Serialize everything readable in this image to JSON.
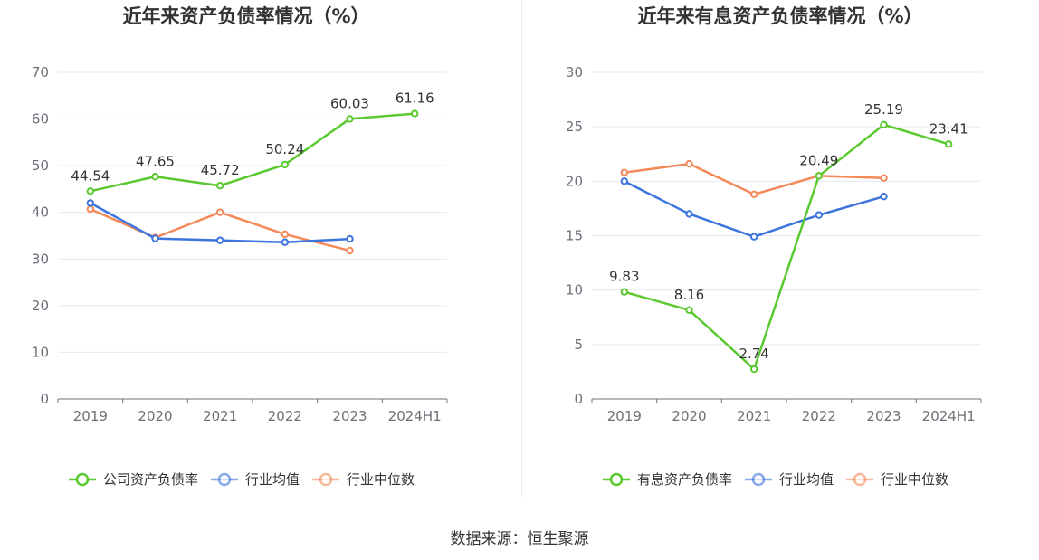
{
  "colors": {
    "company": "#5ac92f",
    "industry_avg": "#3d74dd",
    "industry_median": "#f4895a",
    "grid": "#e6e9f2",
    "axis": "#6e7079"
  },
  "source": "数据来源：恒生聚源",
  "chart_data": [
    {
      "type": "line",
      "title": "近年来资产负债率情况（%）",
      "categories": [
        "2019",
        "2020",
        "2021",
        "2022",
        "2023",
        "2024H1"
      ],
      "ylim": [
        0,
        70
      ],
      "yticks": [
        "0",
        "10",
        "20",
        "30",
        "40",
        "50",
        "60",
        "70"
      ],
      "grid": true,
      "legend_position": "bottom",
      "series": [
        {
          "name": "公司资产负债率",
          "role": "company",
          "values": [
            44.54,
            47.65,
            45.72,
            50.24,
            60.03,
            61.16
          ],
          "labels": [
            "44.54",
            "47.65",
            "45.72",
            "50.24",
            "60.03",
            "61.16"
          ]
        },
        {
          "name": "行业均值",
          "role": "industry_avg",
          "values": [
            42.0,
            34.4,
            34.0,
            33.6,
            34.3,
            null
          ]
        },
        {
          "name": "行业中位数",
          "role": "industry_median",
          "values": [
            40.7,
            34.6,
            40.0,
            35.3,
            31.8,
            null
          ]
        }
      ]
    },
    {
      "type": "line",
      "title": "近年来有息资产负债率情况（%）",
      "categories": [
        "2019",
        "2020",
        "2021",
        "2022",
        "2023",
        "2024H1"
      ],
      "ylim": [
        0,
        30
      ],
      "yticks": [
        "0",
        "5",
        "10",
        "15",
        "20",
        "25",
        "30"
      ],
      "grid": true,
      "legend_position": "bottom",
      "series": [
        {
          "name": "有息资产负债率",
          "role": "company",
          "values": [
            9.83,
            8.16,
            2.74,
            20.49,
            25.19,
            23.41
          ],
          "labels": [
            "9.83",
            "8.16",
            "2.74",
            "20.49",
            "25.19",
            "23.41"
          ]
        },
        {
          "name": "行业均值",
          "role": "industry_avg",
          "values": [
            20.0,
            17.0,
            14.9,
            16.9,
            18.6,
            null
          ]
        },
        {
          "name": "行业中位数",
          "role": "industry_median",
          "values": [
            20.8,
            21.6,
            18.8,
            20.5,
            20.3,
            null
          ]
        }
      ]
    }
  ]
}
